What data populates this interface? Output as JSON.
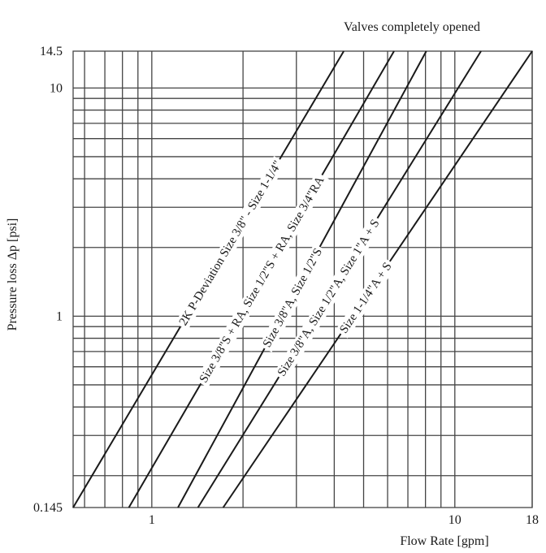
{
  "chart_data": {
    "type": "line",
    "title": "Valves completely opened",
    "xlabel": "Flow Rate [gpm]",
    "ylabel": "Pressure loss Δp [psi]",
    "xscale": "log",
    "yscale": "log",
    "xlim": [
      0.55,
      18
    ],
    "ylim": [
      0.145,
      14.5
    ],
    "grid": true,
    "x_ticks": [
      {
        "value": 1,
        "label": "1"
      },
      {
        "value": 10,
        "label": "10"
      },
      {
        "value": 18,
        "label": "18"
      }
    ],
    "y_ticks": [
      {
        "value": 0.145,
        "label": "0.145"
      },
      {
        "value": 1,
        "label": "1"
      },
      {
        "value": 10,
        "label": "10"
      },
      {
        "value": 14.5,
        "label": "14.5"
      }
    ],
    "x_gridlines": [
      0.6,
      0.7,
      0.8,
      0.9,
      1,
      2,
      3,
      4,
      5,
      6,
      7,
      8,
      9,
      10,
      18
    ],
    "y_gridlines": [
      0.2,
      0.3,
      0.4,
      0.5,
      0.6,
      0.7,
      0.8,
      0.9,
      1,
      2,
      3,
      4,
      5,
      6,
      7,
      8,
      9,
      10
    ],
    "series": [
      {
        "name": "2K P-Deviation  Size 3/8\" - Size 1-1/4\"",
        "x": [
          0.55,
          4.3
        ],
        "y": [
          0.145,
          14.5
        ]
      },
      {
        "name": "Size 3/8\"S + RA, Size 1/2\"S + RA, Size 3/4\"RA",
        "x": [
          0.84,
          6.3
        ],
        "y": [
          0.145,
          14.5
        ]
      },
      {
        "name": "Size 3/8\"A, Size 1/2\"S",
        "x": [
          1.22,
          8.05
        ],
        "y": [
          0.145,
          14.5
        ]
      },
      {
        "name": "Size 3/8\"A, Size 1/2\"A, Size 1\"A + S",
        "x": [
          1.42,
          12.2
        ],
        "y": [
          0.145,
          14.5
        ]
      },
      {
        "name": "Size 1-1/4\"A + S",
        "x": [
          1.72,
          18
        ],
        "y": [
          0.145,
          14.5
        ]
      }
    ]
  }
}
